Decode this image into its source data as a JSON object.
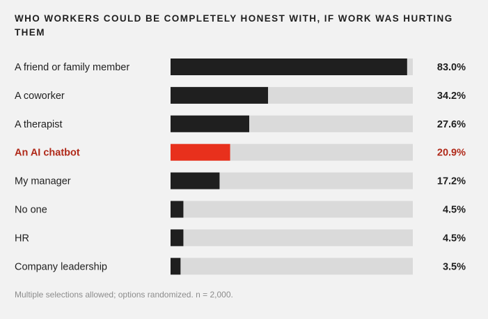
{
  "chart_data": {
    "type": "bar",
    "orientation": "horizontal",
    "title": "WHO WORKERS COULD BE COMPLETELY HONEST WITH, IF WORK WAS HURTING THEM",
    "categories": [
      "A friend or family member",
      "A coworker",
      "A therapist",
      "An AI chatbot",
      "My manager",
      "No one",
      "HR",
      "Company leadership"
    ],
    "values": [
      83.0,
      34.2,
      27.6,
      20.9,
      17.2,
      4.5,
      4.5,
      3.5
    ],
    "value_labels": [
      "83.0%",
      "34.2%",
      "27.6%",
      "20.9%",
      "17.2%",
      "4.5%",
      "4.5%",
      "3.5%"
    ],
    "highlight_index": 3,
    "xlim": [
      0,
      85
    ],
    "unit": "%",
    "footnote": "Multiple selections allowed; options randomized. n = 2,000.",
    "colors": {
      "background": "#f2f2f2",
      "track": "#dadada",
      "bar": "#1f1f1f",
      "highlight": "#e8301c",
      "highlight_text": "#b02a1a",
      "text": "#1f1f1f",
      "footnote": "#8c8c8c"
    },
    "grid": false,
    "legend": "none"
  }
}
